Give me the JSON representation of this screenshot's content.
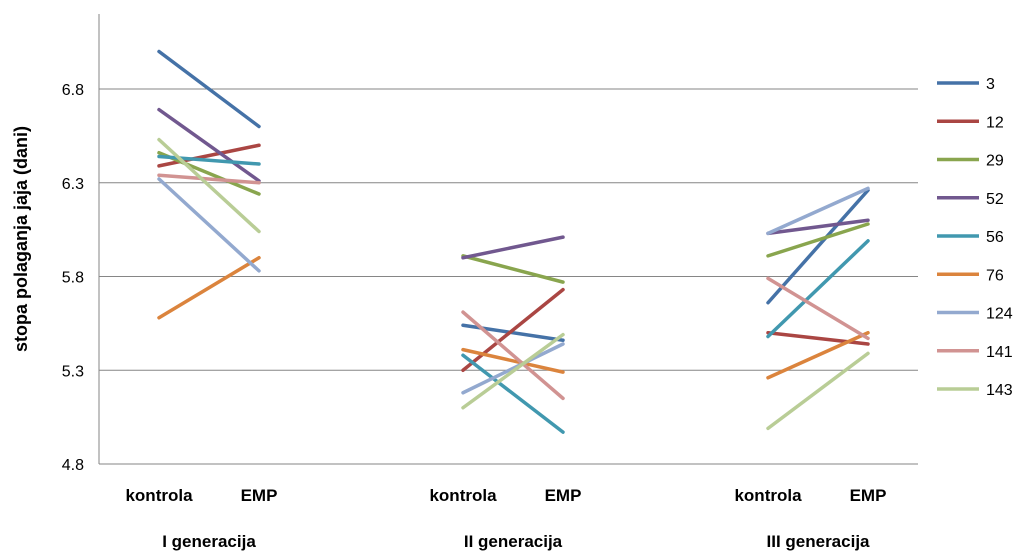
{
  "chart_data": {
    "type": "line",
    "title": "",
    "ylabel": "stopa polaganja jaja (dani)",
    "ylim": [
      4.8,
      7.2
    ],
    "yticks": [
      "4.8",
      "5.3",
      "5.8",
      "6.3",
      "6.8"
    ],
    "grid": true,
    "legend_position": "right",
    "groups": [
      {
        "name": "I generacija",
        "categories": [
          "kontrola",
          "EMP"
        ]
      },
      {
        "name": "II generacija",
        "categories": [
          "kontrola",
          "EMP"
        ]
      },
      {
        "name": "III generacija",
        "categories": [
          "kontrola",
          "EMP"
        ]
      }
    ],
    "series": [
      {
        "name": "3",
        "color": "#4572A7",
        "values": [
          [
            7.0,
            6.6
          ],
          [
            5.54,
            5.46
          ],
          [
            5.66,
            6.26
          ]
        ]
      },
      {
        "name": "12",
        "color": "#AA4643",
        "values": [
          [
            6.39,
            6.5
          ],
          [
            5.3,
            5.73
          ],
          [
            5.5,
            5.44
          ]
        ]
      },
      {
        "name": "29",
        "color": "#89A54E",
        "values": [
          [
            6.46,
            6.24
          ],
          [
            5.91,
            5.77
          ],
          [
            5.91,
            6.08
          ]
        ]
      },
      {
        "name": "52",
        "color": "#71588F",
        "values": [
          [
            6.69,
            6.31
          ],
          [
            5.9,
            6.01
          ],
          [
            6.03,
            6.1
          ]
        ]
      },
      {
        "name": "56",
        "color": "#4198AF",
        "values": [
          [
            6.44,
            6.4
          ],
          [
            5.38,
            4.97
          ],
          [
            5.48,
            5.99
          ]
        ]
      },
      {
        "name": "76",
        "color": "#DB843D",
        "values": [
          [
            5.58,
            5.9
          ],
          [
            5.41,
            5.29
          ],
          [
            5.26,
            5.5
          ]
        ]
      },
      {
        "name": "124",
        "color": "#93A9CF",
        "values": [
          [
            6.32,
            5.83
          ],
          [
            5.18,
            5.44
          ],
          [
            6.03,
            6.27
          ]
        ]
      },
      {
        "name": "141",
        "color": "#D19392",
        "values": [
          [
            6.34,
            6.3
          ],
          [
            5.61,
            5.15
          ],
          [
            5.79,
            5.47
          ]
        ]
      },
      {
        "name": "143",
        "color": "#B9CD96",
        "values": [
          [
            6.53,
            6.04
          ],
          [
            5.1,
            5.49
          ],
          [
            4.99,
            5.39
          ]
        ]
      }
    ]
  }
}
